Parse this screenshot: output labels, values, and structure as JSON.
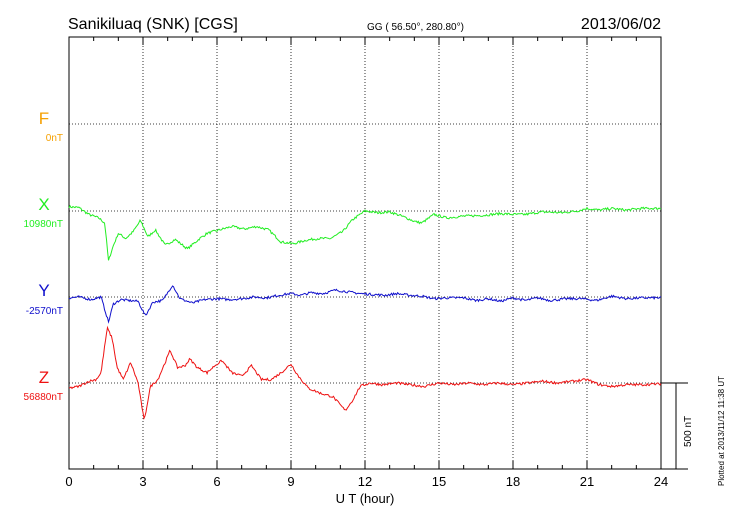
{
  "header": {
    "station": "Sanikiluaq (SNK)  [CGS]",
    "coords": "GG ( 56.50°, 280.80°)",
    "date": "2013/06/02"
  },
  "side_note": "Plotted at 2013/11/12 11:38 UT",
  "scale_label": "500 nT",
  "colors": {
    "F": "#f5a000",
    "X": "#22ee22",
    "Y": "#1010cc",
    "Z": "#ee1111"
  },
  "chart_data": {
    "type": "line",
    "xlabel": "U T (hour)",
    "xlim": [
      0,
      24
    ],
    "xticks": [
      "0",
      "3",
      "6",
      "9",
      "12",
      "15",
      "18",
      "21",
      "24"
    ],
    "grid": true,
    "scale_bar_nT": 500,
    "series": [
      {
        "name": "F",
        "baseline_label": "0nT",
        "points": []
      },
      {
        "name": "X",
        "baseline_label": "10980nT",
        "points": [
          [
            0,
            25
          ],
          [
            0.4,
            20
          ],
          [
            0.8,
            -20
          ],
          [
            1.2,
            -40
          ],
          [
            1.45,
            -70
          ],
          [
            1.6,
            -290
          ],
          [
            1.8,
            -200
          ],
          [
            2.0,
            -130
          ],
          [
            2.3,
            -160
          ],
          [
            2.6,
            -120
          ],
          [
            2.9,
            -55
          ],
          [
            3.2,
            -150
          ],
          [
            3.5,
            -110
          ],
          [
            3.9,
            -200
          ],
          [
            4.3,
            -165
          ],
          [
            4.8,
            -220
          ],
          [
            5.3,
            -160
          ],
          [
            5.6,
            -130
          ],
          [
            6.1,
            -110
          ],
          [
            6.6,
            -90
          ],
          [
            7.1,
            -105
          ],
          [
            7.6,
            -90
          ],
          [
            8.1,
            -110
          ],
          [
            8.6,
            -180
          ],
          [
            9.1,
            -190
          ],
          [
            9.6,
            -170
          ],
          [
            10.1,
            -160
          ],
          [
            10.6,
            -160
          ],
          [
            11.1,
            -120
          ],
          [
            11.5,
            -50
          ],
          [
            12.0,
            0
          ],
          [
            12.5,
            -10
          ],
          [
            13.0,
            -5
          ],
          [
            13.5,
            -30
          ],
          [
            14.0,
            -60
          ],
          [
            14.3,
            -70
          ],
          [
            14.8,
            -20
          ],
          [
            15.3,
            -40
          ],
          [
            16.0,
            -30
          ],
          [
            16.8,
            -25
          ],
          [
            17.5,
            -15
          ],
          [
            18.0,
            -20
          ],
          [
            18.5,
            -20
          ],
          [
            19.2,
            -5
          ],
          [
            20.0,
            -10
          ],
          [
            20.6,
            0
          ],
          [
            21.0,
            15
          ],
          [
            21.5,
            5
          ],
          [
            22.0,
            15
          ],
          [
            22.6,
            5
          ],
          [
            23.2,
            15
          ],
          [
            24,
            15
          ]
        ]
      },
      {
        "name": "Y",
        "baseline_label": "-2570nT",
        "points": [
          [
            0,
            -5
          ],
          [
            0.4,
            0
          ],
          [
            0.9,
            -15
          ],
          [
            1.3,
            0
          ],
          [
            1.6,
            -145
          ],
          [
            1.8,
            -40
          ],
          [
            2.1,
            -15
          ],
          [
            2.4,
            -20
          ],
          [
            2.8,
            -25
          ],
          [
            3.1,
            -110
          ],
          [
            3.4,
            -30
          ],
          [
            3.8,
            -20
          ],
          [
            4.2,
            70
          ],
          [
            4.5,
            -10
          ],
          [
            5.0,
            -35
          ],
          [
            5.5,
            -15
          ],
          [
            6.0,
            -10
          ],
          [
            6.5,
            -15
          ],
          [
            7.0,
            -10
          ],
          [
            7.5,
            0
          ],
          [
            8.0,
            -5
          ],
          [
            8.5,
            10
          ],
          [
            9.0,
            20
          ],
          [
            9.4,
            10
          ],
          [
            9.8,
            25
          ],
          [
            10.3,
            20
          ],
          [
            10.8,
            40
          ],
          [
            11.3,
            30
          ],
          [
            11.8,
            20
          ],
          [
            12.3,
            15
          ],
          [
            12.8,
            10
          ],
          [
            13.3,
            20
          ],
          [
            13.8,
            10
          ],
          [
            14.3,
            5
          ],
          [
            14.8,
            -10
          ],
          [
            15.3,
            -5
          ],
          [
            16.0,
            -5
          ],
          [
            16.5,
            -20
          ],
          [
            17.0,
            -10
          ],
          [
            17.5,
            -25
          ],
          [
            18.0,
            -5
          ],
          [
            18.5,
            -20
          ],
          [
            19.0,
            -5
          ],
          [
            19.5,
            -20
          ],
          [
            20.2,
            -10
          ],
          [
            20.8,
            -10
          ],
          [
            21.4,
            -20
          ],
          [
            22.0,
            5
          ],
          [
            22.6,
            -10
          ],
          [
            23.2,
            -5
          ],
          [
            24,
            -5
          ]
        ]
      },
      {
        "name": "Z",
        "baseline_label": "56880nT",
        "points": [
          [
            0,
            -30
          ],
          [
            0.4,
            -20
          ],
          [
            0.8,
            10
          ],
          [
            1.1,
            20
          ],
          [
            1.3,
            60
          ],
          [
            1.55,
            320
          ],
          [
            1.75,
            260
          ],
          [
            1.95,
            90
          ],
          [
            2.2,
            20
          ],
          [
            2.5,
            120
          ],
          [
            2.8,
            0
          ],
          [
            3.05,
            -220
          ],
          [
            3.3,
            -20
          ],
          [
            3.6,
            20
          ],
          [
            3.9,
            120
          ],
          [
            4.1,
            190
          ],
          [
            4.4,
            90
          ],
          [
            4.7,
            100
          ],
          [
            4.9,
            140
          ],
          [
            5.2,
            90
          ],
          [
            5.6,
            60
          ],
          [
            5.9,
            100
          ],
          [
            6.2,
            130
          ],
          [
            6.6,
            60
          ],
          [
            7.0,
            40
          ],
          [
            7.4,
            100
          ],
          [
            7.8,
            20
          ],
          [
            8.2,
            20
          ],
          [
            8.6,
            60
          ],
          [
            9.0,
            110
          ],
          [
            9.3,
            40
          ],
          [
            9.7,
            -30
          ],
          [
            10.2,
            -60
          ],
          [
            10.7,
            -80
          ],
          [
            11.2,
            -160
          ],
          [
            11.5,
            -100
          ],
          [
            11.8,
            -20
          ],
          [
            12.2,
            0
          ],
          [
            12.7,
            -10
          ],
          [
            13.3,
            0
          ],
          [
            13.8,
            -10
          ],
          [
            14.4,
            -20
          ],
          [
            15.0,
            0
          ],
          [
            15.6,
            -10
          ],
          [
            16.2,
            0
          ],
          [
            16.8,
            -10
          ],
          [
            17.4,
            0
          ],
          [
            18.0,
            -10
          ],
          [
            18.6,
            0
          ],
          [
            19.2,
            10
          ],
          [
            19.8,
            0
          ],
          [
            20.4,
            10
          ],
          [
            21.0,
            20
          ],
          [
            21.5,
            -10
          ],
          [
            22.0,
            -20
          ],
          [
            22.6,
            -10
          ],
          [
            23.2,
            -10
          ],
          [
            24,
            -5
          ]
        ]
      }
    ]
  }
}
